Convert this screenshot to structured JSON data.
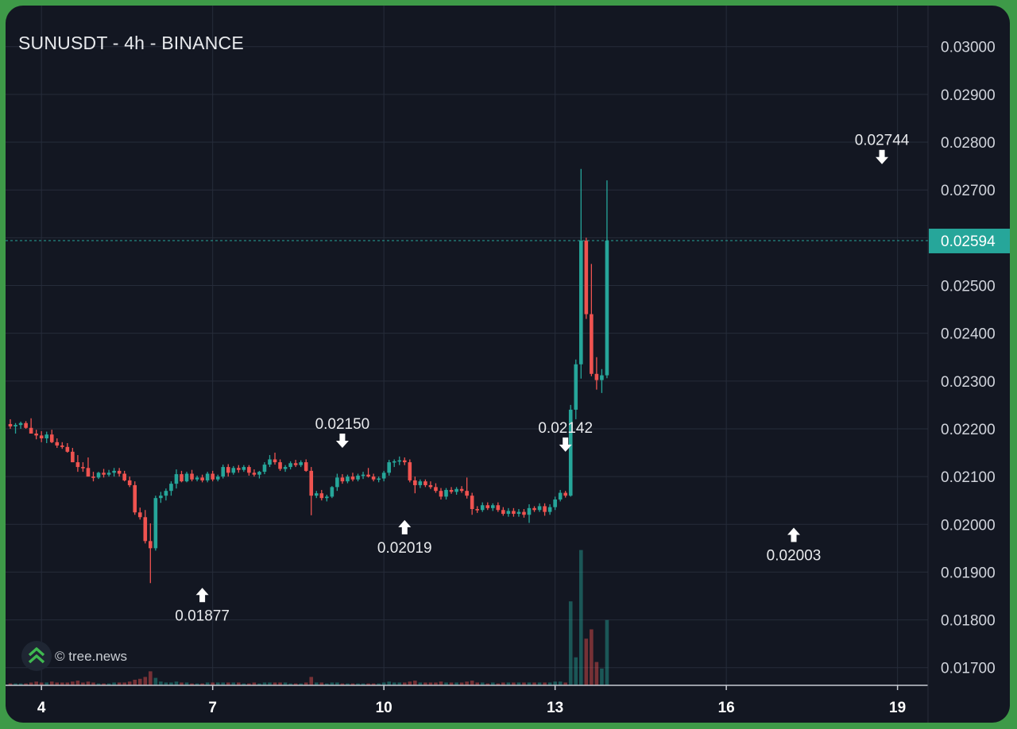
{
  "title": "SUNUSDT - 4h - BINANCE",
  "watermark": "© tree.news",
  "logo_icon": "tree-news-chevrons-icon",
  "colors": {
    "background": "#131722",
    "up": "#26a69a",
    "down": "#ef5350",
    "grid": "#262c3a",
    "text": "#d1d4dc",
    "price_line": "#26a69a",
    "frame": "#3e9a48"
  },
  "chart_data": {
    "type": "candlestick",
    "title": "SUNUSDT - 4h - BINANCE",
    "interval": "4h",
    "x_tick_labels": [
      "4",
      "7",
      "10",
      "13",
      "16",
      "19"
    ],
    "x_tick_index": [
      6,
      39,
      72,
      105,
      138,
      171
    ],
    "y_ticks": [
      0.017,
      0.018,
      0.019,
      0.02,
      0.021,
      0.022,
      0.023,
      0.024,
      0.025,
      0.026,
      0.027,
      0.028,
      0.029,
      0.03
    ],
    "y_tick_labels": [
      "0.01700",
      "0.01800",
      "0.01900",
      "0.02000",
      "0.02100",
      "0.02200",
      "0.02300",
      "0.02400",
      "0.02500",
      "0.02600",
      "0.02700",
      "0.02800",
      "0.02900",
      "0.03000"
    ],
    "ylim": [
      0.01663,
      0.03086
    ],
    "last_price": 0.02594,
    "last_price_label": "0.02594",
    "grid": true,
    "annotations": [
      {
        "label": "0.01877",
        "index": 37,
        "value": 0.01877,
        "type": "low"
      },
      {
        "label": "0.02150",
        "index": 64,
        "value": 0.0215,
        "type": "high"
      },
      {
        "label": "0.02019",
        "index": 76,
        "value": 0.02019,
        "type": "low"
      },
      {
        "label": "0.02142",
        "index": 107,
        "value": 0.02142,
        "type": "high"
      },
      {
        "label": "0.02003",
        "index": 151,
        "value": 0.02003,
        "type": "low"
      },
      {
        "label": "0.02744",
        "index": 168,
        "value": 0.02744,
        "type": "high"
      }
    ],
    "candles": [
      [
        0.0221,
        0.0222,
        0.022,
        0.02205,
        2
      ],
      [
        0.02205,
        0.02212,
        0.0219,
        0.02208,
        2
      ],
      [
        0.02208,
        0.02215,
        0.022,
        0.02212,
        2
      ],
      [
        0.02212,
        0.02216,
        0.022,
        0.02202,
        2
      ],
      [
        0.02202,
        0.02222,
        0.0219,
        0.0219,
        3
      ],
      [
        0.0219,
        0.02198,
        0.02178,
        0.02186,
        4
      ],
      [
        0.02186,
        0.02195,
        0.02172,
        0.0218,
        3
      ],
      [
        0.0218,
        0.02194,
        0.0217,
        0.02188,
        3
      ],
      [
        0.02188,
        0.02198,
        0.0217,
        0.02172,
        4
      ],
      [
        0.02172,
        0.0218,
        0.0216,
        0.02165,
        3
      ],
      [
        0.02165,
        0.02172,
        0.02158,
        0.02162,
        3
      ],
      [
        0.02162,
        0.0217,
        0.0215,
        0.02152,
        3
      ],
      [
        0.02152,
        0.0216,
        0.0213,
        0.0213,
        4
      ],
      [
        0.0213,
        0.02145,
        0.0211,
        0.0212,
        5
      ],
      [
        0.0212,
        0.0213,
        0.0211,
        0.02118,
        3
      ],
      [
        0.02118,
        0.0214,
        0.021,
        0.021,
        4
      ],
      [
        0.021,
        0.0211,
        0.0209,
        0.02098,
        3
      ],
      [
        0.02098,
        0.0211,
        0.02095,
        0.02108,
        2
      ],
      [
        0.02108,
        0.02116,
        0.02098,
        0.02104,
        2
      ],
      [
        0.02104,
        0.02114,
        0.021,
        0.02108,
        2
      ],
      [
        0.02108,
        0.02118,
        0.021,
        0.02112,
        3
      ],
      [
        0.02112,
        0.02118,
        0.021,
        0.02106,
        3
      ],
      [
        0.02106,
        0.02112,
        0.0209,
        0.02092,
        3
      ],
      [
        0.02092,
        0.021,
        0.02078,
        0.02082,
        4
      ],
      [
        0.02082,
        0.0209,
        0.0202,
        0.02025,
        6
      ],
      [
        0.02025,
        0.02035,
        0.0201,
        0.02015,
        7
      ],
      [
        0.02015,
        0.0203,
        0.0196,
        0.01965,
        9
      ],
      [
        0.01965,
        0.02002,
        0.01877,
        0.0195,
        15
      ],
      [
        0.0195,
        0.0206,
        0.01945,
        0.02055,
        8
      ],
      [
        0.02055,
        0.02068,
        0.02045,
        0.0206,
        4
      ],
      [
        0.0206,
        0.02075,
        0.0205,
        0.0207,
        3
      ],
      [
        0.0207,
        0.0209,
        0.0206,
        0.02085,
        3
      ],
      [
        0.02085,
        0.02115,
        0.02075,
        0.02105,
        4
      ],
      [
        0.02105,
        0.02112,
        0.02088,
        0.0209,
        3
      ],
      [
        0.0209,
        0.0211,
        0.02088,
        0.02106,
        3
      ],
      [
        0.02106,
        0.02114,
        0.0209,
        0.02094,
        2
      ],
      [
        0.02094,
        0.02102,
        0.0209,
        0.02098,
        2
      ],
      [
        0.02098,
        0.02104,
        0.02088,
        0.02092,
        2
      ],
      [
        0.02092,
        0.0211,
        0.02088,
        0.02106,
        3
      ],
      [
        0.02106,
        0.02112,
        0.0209,
        0.02094,
        3
      ],
      [
        0.02094,
        0.02104,
        0.0209,
        0.021,
        3
      ],
      [
        0.021,
        0.02125,
        0.02096,
        0.0212,
        3
      ],
      [
        0.0212,
        0.02126,
        0.021,
        0.02108,
        3
      ],
      [
        0.02108,
        0.02122,
        0.02104,
        0.02118,
        3
      ],
      [
        0.02118,
        0.02124,
        0.02108,
        0.02114,
        3
      ],
      [
        0.02114,
        0.02124,
        0.0211,
        0.0212,
        2
      ],
      [
        0.0212,
        0.02124,
        0.02102,
        0.02108,
        2
      ],
      [
        0.02108,
        0.02115,
        0.021,
        0.02104,
        3
      ],
      [
        0.02104,
        0.02112,
        0.02096,
        0.0211,
        2
      ],
      [
        0.0211,
        0.0213,
        0.02105,
        0.02125,
        3
      ],
      [
        0.02125,
        0.02145,
        0.0212,
        0.02136,
        3
      ],
      [
        0.02136,
        0.0215,
        0.02125,
        0.0213,
        3
      ],
      [
        0.0213,
        0.02136,
        0.02112,
        0.02116,
        3
      ],
      [
        0.02116,
        0.02124,
        0.0211,
        0.0212,
        3
      ],
      [
        0.0212,
        0.02132,
        0.02115,
        0.02128,
        2
      ],
      [
        0.02128,
        0.02135,
        0.0212,
        0.02124,
        2
      ],
      [
        0.02124,
        0.02134,
        0.0212,
        0.0213,
        2
      ],
      [
        0.0213,
        0.02136,
        0.0211,
        0.02112,
        3
      ],
      [
        0.02112,
        0.0212,
        0.02019,
        0.0206,
        9
      ],
      [
        0.0206,
        0.0207,
        0.02055,
        0.02065,
        3
      ],
      [
        0.02065,
        0.02072,
        0.0205,
        0.02055,
        3
      ],
      [
        0.02055,
        0.02062,
        0.02048,
        0.02058,
        2
      ],
      [
        0.02058,
        0.0208,
        0.02055,
        0.02078,
        3
      ],
      [
        0.02078,
        0.02106,
        0.0207,
        0.02098,
        3
      ],
      [
        0.02098,
        0.02105,
        0.02085,
        0.0209,
        2
      ],
      [
        0.0209,
        0.02104,
        0.02086,
        0.021,
        2
      ],
      [
        0.021,
        0.02108,
        0.0209,
        0.02094,
        2
      ],
      [
        0.02094,
        0.02106,
        0.0209,
        0.02102,
        2
      ],
      [
        0.02102,
        0.0211,
        0.02095,
        0.02104,
        2
      ],
      [
        0.02104,
        0.02118,
        0.02098,
        0.021,
        2
      ],
      [
        0.021,
        0.02106,
        0.0209,
        0.02094,
        2
      ],
      [
        0.02094,
        0.021,
        0.02088,
        0.02096,
        2
      ],
      [
        0.02096,
        0.02112,
        0.0209,
        0.02108,
        3
      ],
      [
        0.02108,
        0.02135,
        0.02102,
        0.0213,
        4
      ],
      [
        0.0213,
        0.02136,
        0.0212,
        0.02132,
        3
      ],
      [
        0.02132,
        0.02142,
        0.02124,
        0.02134,
        3
      ],
      [
        0.02134,
        0.0214,
        0.02124,
        0.0213,
        3
      ],
      [
        0.0213,
        0.02136,
        0.02088,
        0.02092,
        4
      ],
      [
        0.02092,
        0.021,
        0.02065,
        0.02082,
        5
      ],
      [
        0.02082,
        0.02094,
        0.02076,
        0.0209,
        3
      ],
      [
        0.0209,
        0.02094,
        0.02078,
        0.02082,
        3
      ],
      [
        0.02082,
        0.0209,
        0.02074,
        0.02078,
        3
      ],
      [
        0.02078,
        0.02086,
        0.02066,
        0.0207,
        3
      ],
      [
        0.0207,
        0.02076,
        0.02052,
        0.02058,
        4
      ],
      [
        0.02058,
        0.02076,
        0.02052,
        0.02072,
        3
      ],
      [
        0.02072,
        0.02078,
        0.02064,
        0.02068,
        3
      ],
      [
        0.02068,
        0.02078,
        0.02062,
        0.02074,
        3
      ],
      [
        0.02074,
        0.0208,
        0.02066,
        0.0207,
        3
      ],
      [
        0.0207,
        0.02098,
        0.02054,
        0.0206,
        4
      ],
      [
        0.0206,
        0.02066,
        0.0202,
        0.02032,
        5
      ],
      [
        0.02032,
        0.02038,
        0.02024,
        0.0203,
        3
      ],
      [
        0.0203,
        0.02046,
        0.02026,
        0.0204,
        3
      ],
      [
        0.0204,
        0.02046,
        0.0203,
        0.02034,
        2
      ],
      [
        0.02034,
        0.02044,
        0.02028,
        0.0204,
        3
      ],
      [
        0.0204,
        0.02046,
        0.02026,
        0.0203,
        2
      ],
      [
        0.0203,
        0.02036,
        0.02018,
        0.02022,
        3
      ],
      [
        0.02022,
        0.02034,
        0.02016,
        0.02028,
        3
      ],
      [
        0.02028,
        0.02034,
        0.02016,
        0.02022,
        3
      ],
      [
        0.02022,
        0.02032,
        0.02016,
        0.02026,
        3
      ],
      [
        0.02026,
        0.02032,
        0.02014,
        0.0202,
        3
      ],
      [
        0.0202,
        0.02042,
        0.02003,
        0.02034,
        3
      ],
      [
        0.02034,
        0.02038,
        0.02026,
        0.0203,
        3
      ],
      [
        0.0203,
        0.02044,
        0.02026,
        0.02038,
        3
      ],
      [
        0.02038,
        0.02044,
        0.02018,
        0.02026,
        3
      ],
      [
        0.02026,
        0.02042,
        0.0202,
        0.02036,
        3
      ],
      [
        0.02036,
        0.02058,
        0.0203,
        0.02052,
        4
      ],
      [
        0.02052,
        0.02072,
        0.02048,
        0.02066,
        4
      ],
      [
        0.02066,
        0.0207,
        0.02056,
        0.0206,
        3
      ],
      [
        0.0206,
        0.0225,
        0.02058,
        0.0224,
        90
      ],
      [
        0.0224,
        0.02345,
        0.0222,
        0.02335,
        30
      ],
      [
        0.02335,
        0.02744,
        0.02305,
        0.02594,
        145
      ],
      [
        0.02594,
        0.026,
        0.0243,
        0.0244,
        50
      ],
      [
        0.0244,
        0.02545,
        0.0231,
        0.02315,
        60
      ],
      [
        0.02315,
        0.0235,
        0.02282,
        0.02302,
        25
      ],
      [
        0.02302,
        0.02325,
        0.02275,
        0.02312,
        18
      ],
      [
        0.02312,
        0.0272,
        0.02306,
        0.02594,
        70
      ]
    ]
  }
}
